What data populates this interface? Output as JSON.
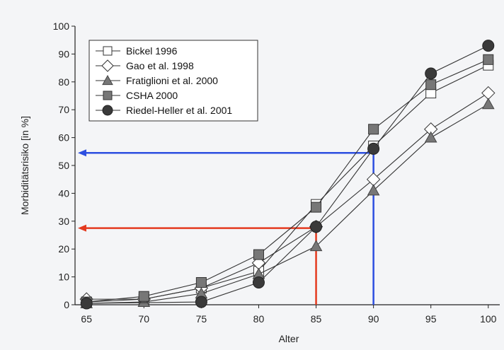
{
  "chart_data": {
    "type": "line",
    "xlabel": "Alter",
    "ylabel": "Morbiditätsrisiko [in %]",
    "x": [
      65,
      70,
      75,
      80,
      85,
      90,
      95,
      100
    ],
    "xlim": [
      64,
      101
    ],
    "ylim": [
      0,
      100
    ],
    "xticks": [
      65,
      70,
      75,
      80,
      85,
      90,
      95,
      100
    ],
    "yticks": [
      0,
      10,
      20,
      30,
      40,
      50,
      60,
      70,
      80,
      90,
      100
    ],
    "grid": false,
    "legend_position": "top-left",
    "series": [
      {
        "name": "Bickel 1996",
        "marker": "square-open",
        "values": [
          1,
          2,
          6,
          12,
          36,
          57,
          76,
          86
        ]
      },
      {
        "name": "Gao et al. 1998",
        "marker": "diamond-open",
        "values": [
          2,
          2,
          6,
          15,
          28,
          45,
          63,
          76
        ]
      },
      {
        "name": "Fratiglioni et al. 2000",
        "marker": "triangle-filled",
        "values": [
          0.5,
          1,
          4,
          11,
          21,
          41,
          60,
          72
        ]
      },
      {
        "name": "CSHA 2000",
        "marker": "square-filled",
        "values": [
          1,
          3,
          8,
          18,
          35,
          63,
          79,
          88
        ]
      },
      {
        "name": "Riedel-Heller et al. 2001",
        "marker": "circle-filled",
        "values": [
          0.5,
          null,
          1,
          8,
          28,
          56,
          83,
          93
        ]
      }
    ],
    "annotations": [
      {
        "type": "reference-lines",
        "color": "#e43a1f",
        "x": 85,
        "y": 27.5
      },
      {
        "type": "reference-lines",
        "color": "#2d4fe0",
        "x": 90,
        "y": 54.5
      }
    ]
  },
  "colors": {
    "background": "#f4f5f7",
    "axis": "#222222",
    "series_line": "#333333",
    "marker_fill_dark": "#3a3a3a",
    "marker_fill_mid": "#777777",
    "marker_fill_open": "#ffffff"
  }
}
